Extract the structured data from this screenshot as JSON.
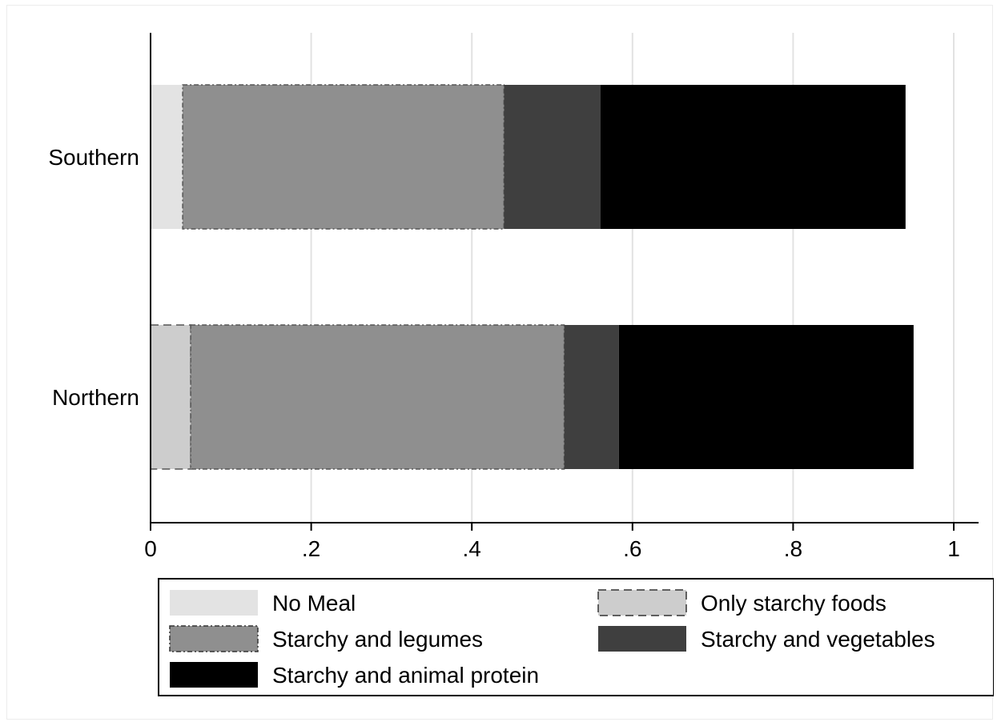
{
  "chart_data": {
    "type": "bar",
    "orientation": "horizontal",
    "stacked": true,
    "categories": [
      "Southern",
      "Northern"
    ],
    "series": [
      {
        "name": "No Meal",
        "color": "#e3e3e3",
        "border": "none",
        "values": [
          0.04,
          0.0
        ]
      },
      {
        "name": "Only starchy foods",
        "color": "#cdcdcd",
        "border": "dashed",
        "values": [
          0.0,
          0.05
        ]
      },
      {
        "name": "Starchy and legumes",
        "color": "#8f8f8f",
        "border": "dash-dot",
        "values": [
          0.4,
          0.465
        ]
      },
      {
        "name": "Starchy and vegetables",
        "color": "#3f3f3f",
        "border": "none",
        "values": [
          0.12,
          0.068
        ]
      },
      {
        "name": "Starchy and animal protein",
        "color": "#000000",
        "border": "none",
        "values": [
          0.38,
          0.367
        ]
      }
    ],
    "xlim": [
      0,
      1
    ],
    "xticks": [
      0,
      0.2,
      0.4,
      0.6,
      0.8,
      1
    ],
    "xtick_labels": [
      "0",
      ".2",
      ".4",
      ".6",
      ".8",
      "1"
    ],
    "xlabel": "",
    "ylabel": "",
    "title": "",
    "grid": "vertical",
    "legend_position": "bottom"
  }
}
